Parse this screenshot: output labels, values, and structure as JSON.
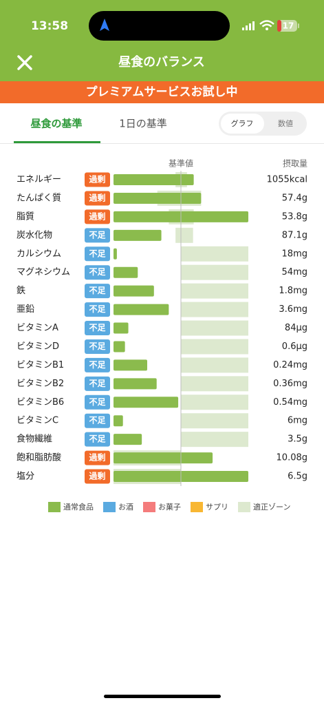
{
  "status_bar": {
    "time": "13:58",
    "battery": "17"
  },
  "header": {
    "title": "昼食のバランス"
  },
  "banner": "プレミアムサービスお試し中",
  "tabs": [
    "昼食の基準",
    "1日の基準"
  ],
  "toggle": [
    "グラフ",
    "数値"
  ],
  "chart_data": {
    "type": "bar",
    "baseline_label": "基準値",
    "amount_label": "摂取量",
    "xlim": [
      0,
      200
    ],
    "baseline": 100,
    "color": "#8bbb4d",
    "zone_color": "#dde9cf",
    "status_colors": {
      "過剰": "#f26b2a",
      "不足": "#5aaae0"
    },
    "categories": [
      "エネルギー",
      "たんぱく質",
      "脂質",
      "炭水化物",
      "カルシウム",
      "マグネシウム",
      "鉄",
      "亜鉛",
      "ビタミンA",
      "ビタミンD",
      "ビタミンB1",
      "ビタミンB2",
      "ビタミンB6",
      "ビタミンC",
      "食物繊維",
      "飽和脂肪酸",
      "塩分"
    ],
    "statuses": [
      "過剰",
      "過剰",
      "過剰",
      "不足",
      "不足",
      "不足",
      "不足",
      "不足",
      "不足",
      "不足",
      "不足",
      "不足",
      "不足",
      "不足",
      "不足",
      "過剰",
      "過剰"
    ],
    "amounts": [
      "1055kcal",
      "57.4g",
      "53.8g",
      "87.1g",
      "18mg",
      "54mg",
      "1.8mg",
      "3.6mg",
      "84µg",
      "0.6µg",
      "0.24mg",
      "0.36mg",
      "0.54mg",
      "6mg",
      "3.5g",
      "10.08g",
      "6.5g"
    ],
    "values": [
      119,
      130,
      200,
      71,
      5,
      36,
      60,
      82,
      22,
      17,
      50,
      64,
      96,
      14,
      42,
      147,
      200
    ],
    "zone_low": [
      92,
      65,
      82,
      92,
      100,
      100,
      100,
      100,
      100,
      100,
      100,
      100,
      100,
      100,
      100,
      0,
      0
    ],
    "zone_high": [
      109,
      130,
      119,
      118,
      200,
      200,
      200,
      200,
      200,
      200,
      200,
      200,
      200,
      200,
      200,
      100,
      100
    ],
    "legend": [
      {
        "name": "通常食品",
        "color": "#8bbb4d"
      },
      {
        "name": "お酒",
        "color": "#5aaae0"
      },
      {
        "name": "お菓子",
        "color": "#f47c7c"
      },
      {
        "name": "サプリ",
        "color": "#f8b733"
      },
      {
        "name": "適正ゾーン",
        "color": "#dde9cf"
      }
    ]
  }
}
